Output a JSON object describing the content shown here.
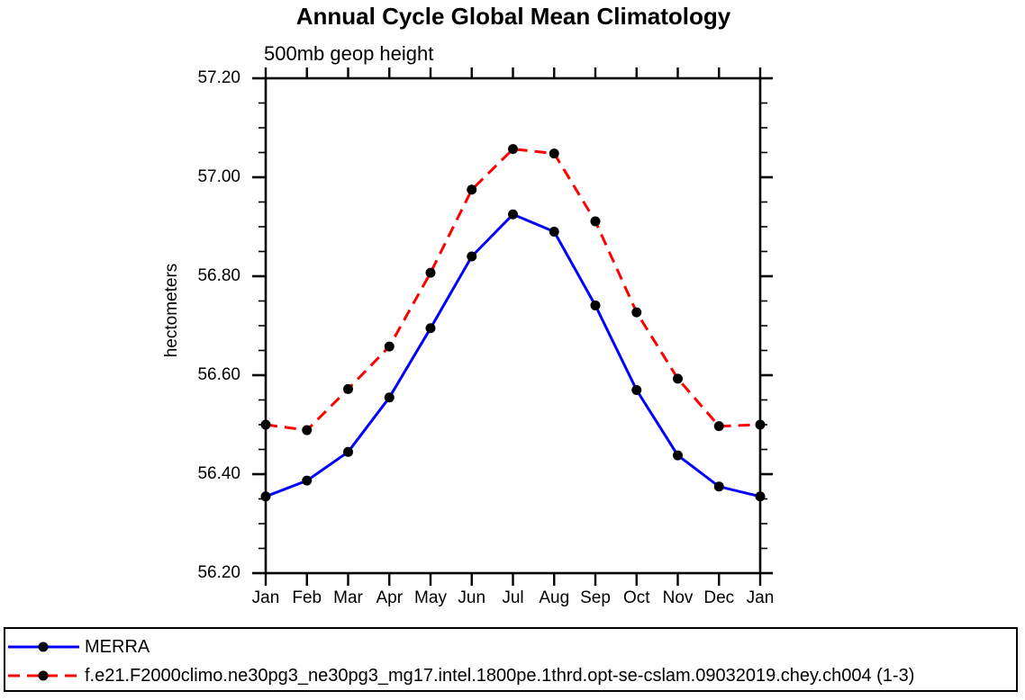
{
  "chart_data": {
    "type": "line",
    "title": "Annual Cycle Global Mean Climatology",
    "subtitle": "500mb geop height",
    "xlabel": "",
    "ylabel": "hectometers",
    "categories": [
      "Jan",
      "Feb",
      "Mar",
      "Apr",
      "May",
      "Jun",
      "Jul",
      "Aug",
      "Sep",
      "Oct",
      "Nov",
      "Dec",
      "Jan"
    ],
    "series": [
      {
        "name": "MERRA",
        "color": "#0000ff",
        "style": "solid",
        "marker_color": "#000000",
        "values": [
          56.355,
          56.387,
          56.445,
          56.555,
          56.695,
          56.84,
          56.925,
          56.89,
          56.741,
          56.57,
          56.438,
          56.375,
          56.355
        ]
      },
      {
        "name": "f.e21.F2000climo.ne30pg3_ne30pg3_mg17.intel.1800pe.1thrd.opt-se-cslam.09032019.chey.ch004 (1-3)",
        "color": "#ff0000",
        "style": "dashed",
        "marker_color": "#000000",
        "values": [
          56.5,
          56.489,
          56.572,
          56.658,
          56.807,
          56.975,
          57.057,
          57.048,
          56.911,
          56.727,
          56.593,
          56.497,
          56.5
        ]
      }
    ],
    "ylim": [
      56.2,
      57.2
    ],
    "ytick_values": [
      57.2,
      57.0,
      56.8,
      56.6,
      56.4,
      56.2
    ],
    "ytick_labels": [
      "57.20",
      "57.00",
      "56.80",
      "56.60",
      "56.40",
      "56.20"
    ],
    "minor_tick_interval": 0.05,
    "grid": false,
    "legend_position": "bottom",
    "axis_color": "#000000"
  }
}
